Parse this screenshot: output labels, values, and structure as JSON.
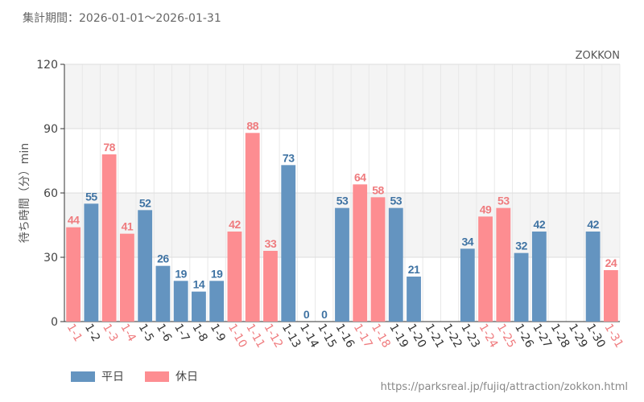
{
  "header": {
    "period": "集計期間：2026-01-01～2026-01-31",
    "brand": "ZOKKON"
  },
  "footer": {
    "url": "https://parksreal.jp/fujiq/attraction/zokkon.html"
  },
  "legend": {
    "weekday": "平日",
    "holiday": "休日"
  },
  "colors": {
    "weekday": "#6494c0",
    "holiday": "#fd8d91",
    "holiday_label": "#ef7b7e",
    "weekday_label": "#3f73a3"
  },
  "chart_data": {
    "type": "bar",
    "title": "",
    "xlabel": "",
    "ylabel": "待ち時間（分）min",
    "ylim": [
      0,
      120
    ],
    "yticks": [
      0,
      30,
      60,
      90,
      120
    ],
    "categories": [
      "1-1",
      "1-2",
      "1-3",
      "1-4",
      "1-5",
      "1-6",
      "1-7",
      "1-8",
      "1-9",
      "1-10",
      "1-11",
      "1-12",
      "1-13",
      "1-14",
      "1-15",
      "1-16",
      "1-17",
      "1-18",
      "1-19",
      "1-20",
      "1-21",
      "1-22",
      "1-23",
      "1-24",
      "1-25",
      "1-26",
      "1-27",
      "1-28",
      "1-29",
      "1-30",
      "1-31"
    ],
    "values": [
      44,
      55,
      78,
      41,
      52,
      26,
      19,
      14,
      19,
      42,
      88,
      33,
      73,
      0,
      0,
      53,
      64,
      58,
      53,
      21,
      null,
      null,
      34,
      49,
      53,
      32,
      42,
      null,
      null,
      42,
      24
    ],
    "day_type": [
      "holiday",
      "weekday",
      "holiday",
      "holiday",
      "weekday",
      "weekday",
      "weekday",
      "weekday",
      "weekday",
      "holiday",
      "holiday",
      "holiday",
      "weekday",
      "weekday",
      "weekday",
      "weekday",
      "holiday",
      "holiday",
      "weekday",
      "weekday",
      "weekday",
      "weekday",
      "weekday",
      "holiday",
      "holiday",
      "weekday",
      "weekday",
      "weekday",
      "weekday",
      "weekday",
      "holiday"
    ]
  }
}
